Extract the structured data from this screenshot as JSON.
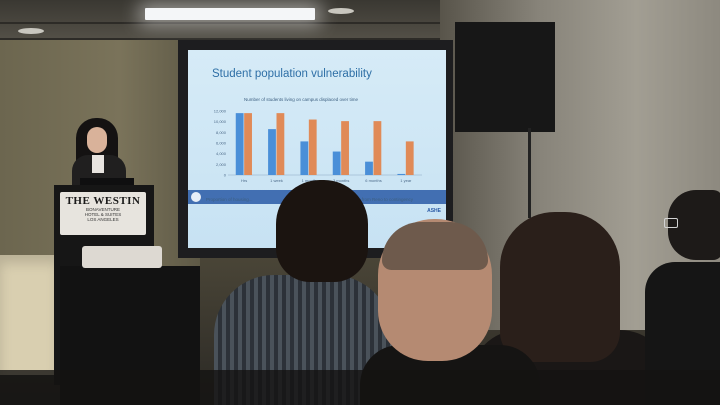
{
  "slide": {
    "title": "Student population vulnerability",
    "chart_subtitle": "Number of students living on campus displaced over time",
    "footer_left": "Proportion of housing...",
    "footer_right": "...from Reno to contingency",
    "brand": "ASHE"
  },
  "chart_data": {
    "type": "bar",
    "title": "Number of students living on campus displaced over time",
    "categories": [
      "Hrs",
      "1 week",
      "1 month",
      "3 months",
      "6 months",
      "1 year"
    ],
    "y_ticks": [
      "12,000",
      "10,000",
      "8,000",
      "6,000",
      "4,000",
      "2,000",
      "0"
    ],
    "ylim": [
      0,
      12000
    ],
    "series": [
      {
        "values": [
          11600,
          8600,
          6300,
          4400,
          2500,
          200
        ],
        "color": "#4a8fd8"
      },
      {
        "values": [
          11600,
          11600,
          10400,
          10100,
          10100,
          6300
        ],
        "color": "#e08a57"
      }
    ]
  },
  "podium_sign": {
    "brand": "THE WESTIN",
    "line1": "BONAVENTURE",
    "line2": "HOTEL & SUITES",
    "line3": "LOS ANGELES"
  }
}
